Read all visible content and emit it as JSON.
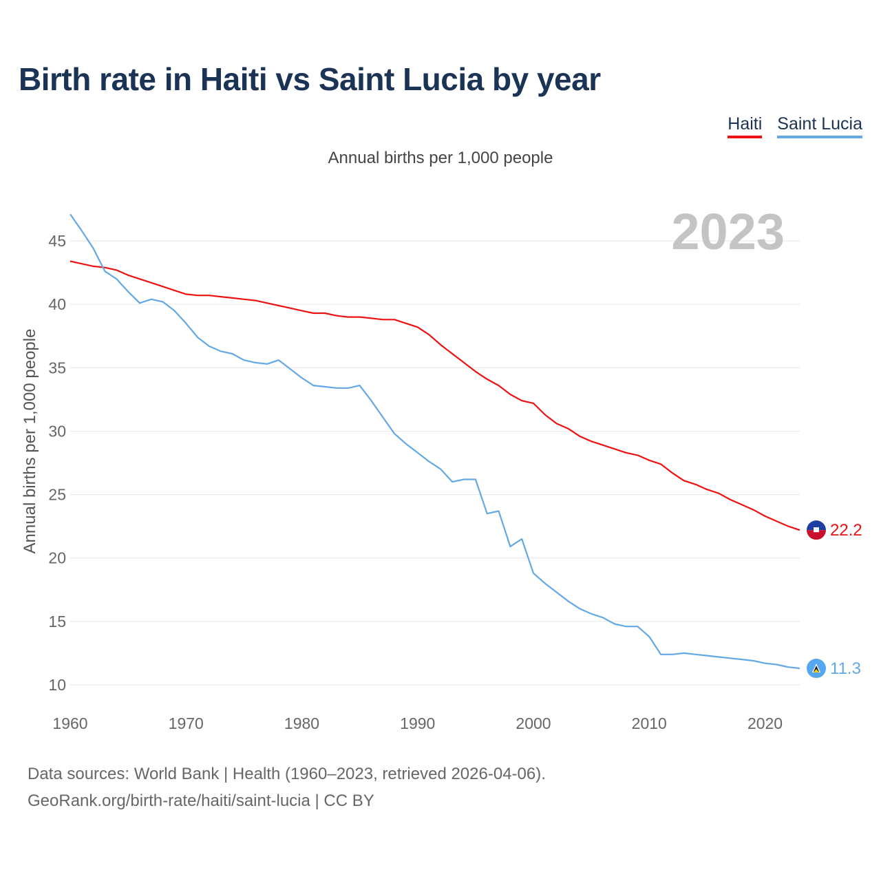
{
  "chart_data": {
    "type": "line",
    "title": "Birth rate in Haiti vs Saint Lucia by year",
    "subtitle": "Annual births per 1,000 people",
    "ylabel": "Annual births per 1,000 people",
    "xlabel": "",
    "year_watermark": "2023",
    "x": [
      1960,
      1961,
      1962,
      1963,
      1964,
      1965,
      1966,
      1967,
      1968,
      1969,
      1970,
      1971,
      1972,
      1973,
      1974,
      1975,
      1976,
      1977,
      1978,
      1979,
      1980,
      1981,
      1982,
      1983,
      1984,
      1985,
      1986,
      1987,
      1988,
      1989,
      1990,
      1991,
      1992,
      1993,
      1994,
      1995,
      1996,
      1997,
      1998,
      1999,
      2000,
      2001,
      2002,
      2003,
      2004,
      2005,
      2006,
      2007,
      2008,
      2009,
      2010,
      2011,
      2012,
      2013,
      2014,
      2015,
      2016,
      2017,
      2018,
      2019,
      2020,
      2021,
      2022,
      2023
    ],
    "xlim": [
      1960,
      2023
    ],
    "ylim": [
      9.5,
      47.2
    ],
    "xticks": [
      "1960",
      "1970",
      "1980",
      "1990",
      "2000",
      "2010",
      "2020"
    ],
    "yticks": [
      "10",
      "15",
      "20",
      "25",
      "30",
      "35",
      "40",
      "45"
    ],
    "series": [
      {
        "name": "Haiti",
        "color": "#ee1111",
        "end_label": "22.2",
        "values": [
          43.4,
          43.2,
          43.0,
          42.9,
          42.7,
          42.3,
          42.0,
          41.7,
          41.4,
          41.1,
          40.8,
          40.7,
          40.7,
          40.6,
          40.5,
          40.4,
          40.3,
          40.1,
          39.9,
          39.7,
          39.5,
          39.3,
          39.3,
          39.1,
          39.0,
          39.0,
          38.9,
          38.8,
          38.8,
          38.5,
          38.2,
          37.6,
          36.8,
          36.1,
          35.4,
          34.7,
          34.1,
          33.6,
          32.9,
          32.4,
          32.2,
          31.3,
          30.6,
          30.2,
          29.6,
          29.2,
          28.9,
          28.6,
          28.3,
          28.1,
          27.7,
          27.4,
          26.7,
          26.1,
          25.8,
          25.4,
          25.1,
          24.6,
          24.2,
          23.8,
          23.3,
          22.9,
          22.5,
          22.2
        ]
      },
      {
        "name": "Saint Lucia",
        "color": "#63a8e6",
        "end_label": "11.3",
        "values": [
          47.1,
          45.8,
          44.4,
          42.6,
          42.0,
          41.0,
          40.1,
          40.4,
          40.2,
          39.5,
          38.5,
          37.4,
          36.7,
          36.3,
          36.1,
          35.6,
          35.4,
          35.3,
          35.6,
          34.9,
          34.2,
          33.6,
          33.5,
          33.4,
          33.4,
          33.6,
          32.4,
          31.1,
          29.8,
          29.0,
          28.3,
          27.6,
          27.0,
          26.0,
          26.2,
          26.2,
          23.5,
          23.7,
          20.9,
          21.5,
          18.8,
          18.0,
          17.3,
          16.6,
          16.0,
          15.6,
          15.3,
          14.8,
          14.6,
          14.6,
          13.8,
          12.4,
          12.4,
          12.5,
          12.4,
          12.3,
          12.2,
          12.1,
          12.0,
          11.9,
          11.7,
          11.6,
          11.4,
          11.3
        ]
      }
    ]
  },
  "legend": {
    "items": [
      "Haiti",
      "Saint Lucia"
    ]
  },
  "footer": {
    "line1": "Data sources: World Bank | Health (1960–2023, retrieved 2026-04-06).",
    "line2": "GeoRank.org/birth-rate/haiti/saint-lucia | CC BY"
  }
}
